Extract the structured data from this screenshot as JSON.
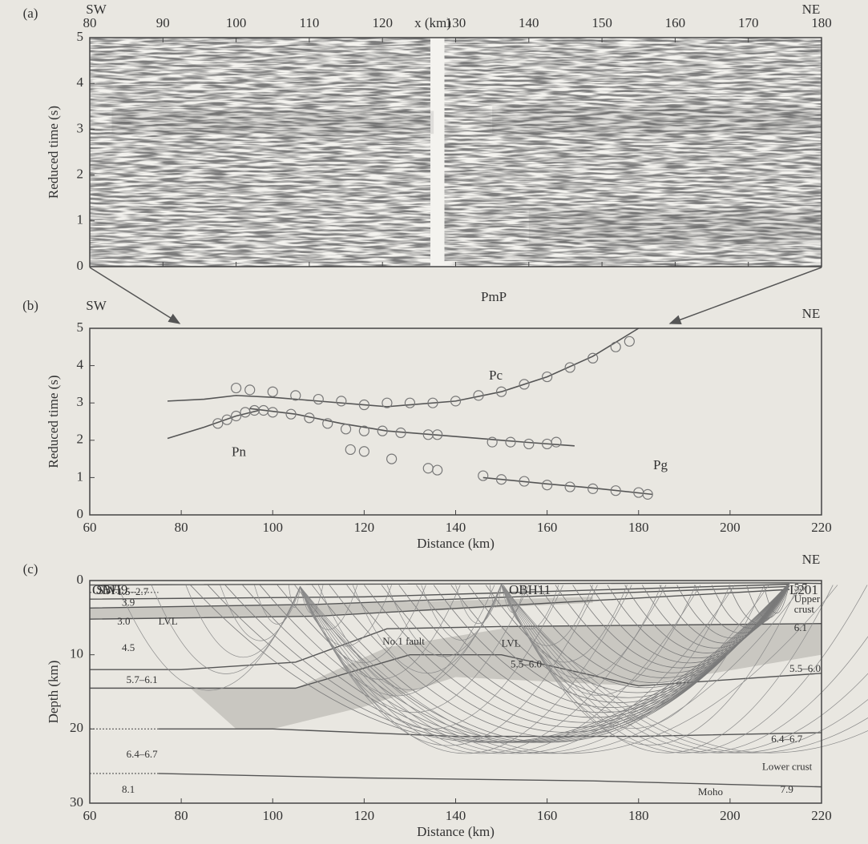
{
  "chart_data": [
    {
      "type": "seismic-section",
      "panel": "(a)",
      "left_label": "SW",
      "right_label": "NE",
      "xlabel": "x (km)",
      "ylabel": "Reduced time (s)",
      "xlim": [
        80,
        180
      ],
      "xticks": [
        80,
        90,
        100,
        110,
        120,
        130,
        140,
        150,
        160,
        170,
        180
      ],
      "ylim": [
        0,
        5
      ],
      "yticks": [
        0,
        1,
        2,
        3,
        4,
        5
      ]
    },
    {
      "type": "scatter",
      "panel": "(b)",
      "left_label": "SW",
      "right_label": "NE",
      "xlabel": "Distance (km)",
      "ylabel": "Reduced time (s)",
      "xlim": [
        60,
        220
      ],
      "xticks": [
        60,
        80,
        100,
        120,
        140,
        160,
        180,
        200,
        220
      ],
      "ylim": [
        0,
        5
      ],
      "yticks": [
        0,
        1,
        2,
        3,
        4,
        5
      ],
      "series": [
        {
          "name": "Pn",
          "x": [
            88,
            90,
            92,
            94,
            96
          ],
          "values": [
            2.45,
            2.55,
            2.65,
            2.75,
            2.8
          ],
          "curve_x": [
            77,
            85,
            92,
            97
          ],
          "curve_values": [
            2.05,
            2.35,
            2.65,
            2.8
          ]
        },
        {
          "name": "Pc",
          "x": [
            98,
            100,
            104,
            108,
            112,
            116,
            120,
            124,
            128,
            134,
            136,
            148,
            152,
            156,
            160,
            162,
            117,
            120,
            126,
            134,
            136
          ],
          "values": [
            2.8,
            2.75,
            2.7,
            2.6,
            2.45,
            2.3,
            2.25,
            2.25,
            2.2,
            2.15,
            2.15,
            1.95,
            1.95,
            1.9,
            1.9,
            1.95,
            1.75,
            1.7,
            1.5,
            1.25,
            1.2
          ],
          "curve_x": [
            95,
            105,
            115,
            125,
            135,
            145,
            155,
            166
          ],
          "curve_values": [
            2.85,
            2.7,
            2.45,
            2.25,
            2.15,
            2.05,
            1.95,
            1.85
          ]
        },
        {
          "name": "PmP",
          "x": [
            92,
            95,
            100,
            105,
            110,
            115,
            120,
            125,
            130,
            135,
            140,
            145,
            150,
            155,
            160,
            165,
            170,
            175,
            178
          ],
          "values": [
            3.4,
            3.35,
            3.3,
            3.2,
            3.1,
            3.05,
            2.95,
            3.0,
            3.0,
            3.0,
            3.05,
            3.2,
            3.3,
            3.5,
            3.7,
            3.95,
            4.2,
            4.5,
            4.65
          ],
          "curve_x": [
            77,
            85,
            92,
            100,
            110,
            120,
            125,
            130,
            140,
            150,
            160,
            170,
            180
          ],
          "curve_values": [
            3.05,
            3.1,
            3.2,
            3.15,
            3.05,
            2.95,
            2.9,
            2.95,
            3.05,
            3.3,
            3.7,
            4.25,
            5.0
          ]
        },
        {
          "name": "Pg",
          "x": [
            146,
            150,
            155,
            160,
            165,
            170,
            175,
            180,
            182
          ],
          "values": [
            1.05,
            0.95,
            0.9,
            0.8,
            0.75,
            0.7,
            0.65,
            0.6,
            0.55
          ],
          "curve_x": [
            146,
            160,
            170,
            183
          ],
          "curve_values": [
            1.0,
            0.83,
            0.72,
            0.55
          ]
        }
      ]
    },
    {
      "type": "ray-diagram",
      "panel": "(c)",
      "left_label": "SW",
      "right_label": "NE",
      "xlabel": "Distance (km)",
      "ylabel": "Depth (km)",
      "xlim": [
        60,
        220
      ],
      "xticks": [
        60,
        80,
        100,
        120,
        140,
        160,
        180,
        200,
        220
      ],
      "ylim": [
        0,
        30
      ],
      "yticks": [
        0,
        10,
        20,
        30
      ],
      "stations": [
        "OBH9",
        "OBH11",
        "L201"
      ],
      "labels": [
        "1.5–2.7",
        "3.9",
        "3.0",
        "LVL",
        "4.5",
        "5.7–6.1",
        "6.4–6.7",
        "8.1",
        "No.1 fault",
        "LVL",
        "5.5–6.0",
        "5.7",
        "Upper",
        "crust",
        "6.1",
        "5.5–6.0",
        "6.4–6.7",
        "Lower crust",
        "Moho",
        "7.9"
      ]
    }
  ]
}
